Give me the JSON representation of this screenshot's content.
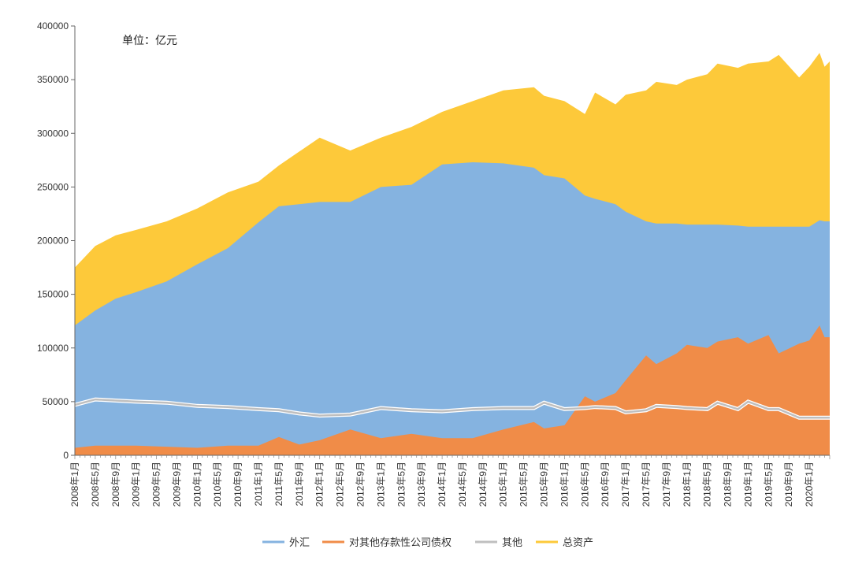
{
  "chart_data": {
    "type": "area",
    "unit_label": "单位：亿元",
    "y_ticks": [
      "0",
      "50000",
      "100000",
      "150000",
      "200000",
      "250000",
      "300000",
      "350000",
      "400000"
    ],
    "ylim": [
      0,
      400000
    ],
    "x_tick_labels": [
      "2008年1月",
      "2008年5月",
      "2008年9月",
      "2009年1月",
      "2009年5月",
      "2009年9月",
      "2010年1月",
      "2010年5月",
      "2010年9月",
      "2011年1月",
      "2011年5月",
      "2011年9月",
      "2012年1月",
      "2012年5月",
      "2012年9月",
      "2013年1月",
      "2013年5月",
      "2013年9月",
      "2014年1月",
      "2014年5月",
      "2014年9月",
      "2015年1月",
      "2015年5月",
      "2015年9月",
      "2016年1月",
      "2016年5月",
      "2016年9月",
      "2017年1月",
      "2017年5月",
      "2017年9月",
      "2018年1月",
      "2018年5月",
      "2018年9月",
      "2019年1月",
      "2019年5月",
      "2019年9月",
      "2020年1月"
    ],
    "x_start": "2008年1月",
    "x_end": "2020年4月",
    "anchor_months": [
      0,
      4,
      8,
      12,
      18,
      24,
      30,
      36,
      40,
      44,
      48,
      54,
      60,
      66,
      72,
      78,
      84,
      90,
      92,
      96,
      100,
      102,
      106,
      108,
      112,
      114,
      118,
      120,
      124,
      126,
      130,
      132,
      136,
      138,
      142,
      144,
      146,
      147,
      148
    ],
    "series": [
      {
        "name": "外汇",
        "color": "#85b3e0",
        "values": [
          121000,
          135000,
          146000,
          152000,
          162000,
          178000,
          193000,
          217000,
          232000,
          234000,
          236000,
          236000,
          250000,
          252000,
          271000,
          273000,
          272000,
          268000,
          261000,
          258000,
          242000,
          239000,
          234000,
          227000,
          218000,
          216000,
          216000,
          215000,
          215000,
          215000,
          214000,
          213000,
          213000,
          213000,
          213000,
          213000,
          219000,
          218000,
          218000
        ]
      },
      {
        "name": "对其他存款性公司债权",
        "color": "#f08c48",
        "values": [
          7000,
          9000,
          9000,
          9000,
          8000,
          7000,
          9000,
          9000,
          17000,
          10000,
          14000,
          24000,
          16000,
          20000,
          16000,
          16000,
          24000,
          31000,
          25000,
          28000,
          55000,
          50000,
          58000,
          70000,
          93000,
          85000,
          95000,
          103000,
          100000,
          106000,
          110000,
          104000,
          112000,
          95000,
          104000,
          107000,
          121000,
          110000,
          110000
        ]
      },
      {
        "name": "其他",
        "color": "#bfbfbf",
        "values": [
          47000,
          52000,
          51000,
          50000,
          49000,
          46000,
          45000,
          43000,
          42000,
          39000,
          37000,
          38000,
          44000,
          42000,
          41000,
          43000,
          44000,
          44000,
          49000,
          43000,
          44000,
          45000,
          44000,
          40000,
          42000,
          46000,
          45000,
          44000,
          43000,
          49000,
          43000,
          50000,
          43000,
          43000,
          35000,
          35000,
          35000,
          35000,
          35000
        ]
      },
      {
        "name": "总资产",
        "color": "#fdc93a",
        "values": [
          175000,
          195000,
          205000,
          210000,
          218000,
          230000,
          245000,
          255000,
          270000,
          283000,
          296000,
          284000,
          296000,
          306000,
          320000,
          330000,
          340000,
          343000,
          335000,
          330000,
          318000,
          338000,
          327000,
          336000,
          340000,
          348000,
          345000,
          350000,
          355000,
          365000,
          361000,
          365000,
          367000,
          373000,
          352000,
          362000,
          375000,
          362000,
          367000
        ]
      }
    ],
    "legend_position": "bottom-center",
    "grid": false
  }
}
